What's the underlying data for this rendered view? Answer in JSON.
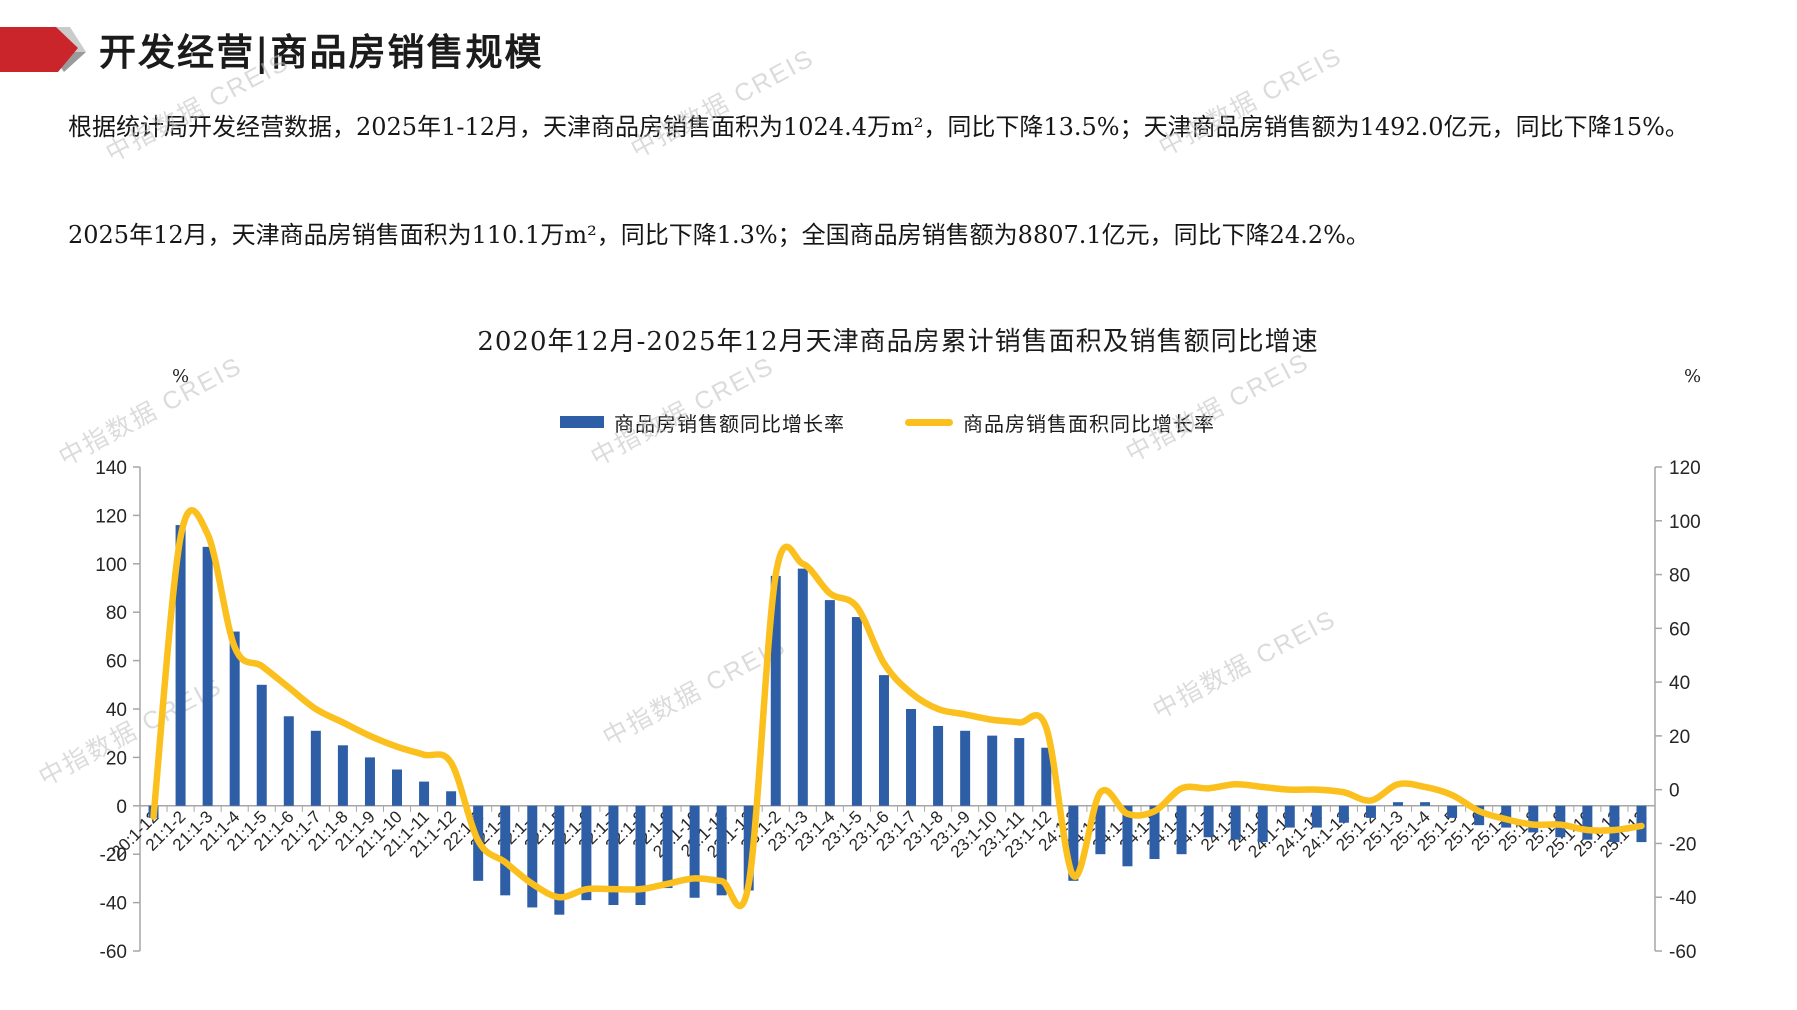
{
  "header": {
    "title": "开发经营|商品房销售规模"
  },
  "paragraphs": {
    "p1": "根据统计局开发经营数据，2025年1-12月，天津商品房销售面积为1024.4万m²，同比下降13.5%；天津商品房销售额为1492.0亿元，同比下降15%。",
    "p2": "2025年12月，天津商品房销售面积为110.1万m²，同比下降1.3%；全国商品房销售额为8807.1亿元，同比下降24.2%。"
  },
  "watermark": {
    "text": "中指数据 CREIS"
  },
  "chart_data": {
    "type": "combo-bar-line",
    "title": "2020年12月-2025年12月天津商品房累计销售面积及销售额同比增速",
    "unit_left": "%",
    "unit_right": "%",
    "legend_position": "top",
    "grid": "off",
    "left_axis": {
      "min": -60,
      "max": 140,
      "step": 20
    },
    "right_axis": {
      "min": -60,
      "max": 120,
      "step": 20
    },
    "categories": [
      "20:1-12",
      "21:1-2",
      "21:1-3",
      "21:1-4",
      "21:1-5",
      "21:1-6",
      "21:1-7",
      "21:1-8",
      "21:1-9",
      "21:1-10",
      "21:1-11",
      "21:1-12",
      "22:1-2",
      "22:1-3",
      "22:1-4",
      "22:1-5",
      "22:1-6",
      "22:1-7",
      "22:1-8",
      "22:1-9",
      "22:1-10",
      "22:1-11",
      "22:1-12",
      "23:1-2",
      "23:1-3",
      "23:1-4",
      "23:1-5",
      "23:1-6",
      "23:1-7",
      "23:1-8",
      "23:1-9",
      "23:1-10",
      "23:1-11",
      "23:1-12",
      "24:1-2",
      "24:1-3",
      "24:1-4",
      "24:1-5",
      "24:1-6",
      "24:1-7",
      "24:1-8",
      "24:1-9",
      "24:1-10",
      "24:1-11",
      "24:1-12",
      "25:1-2",
      "25:1-3",
      "25:1-4",
      "25:1-5",
      "25:1-6",
      "25:1-7",
      "25:1-8",
      "25:1-9",
      "25:1-10",
      "25:1-11",
      "25:1-12"
    ],
    "series": [
      {
        "name": "商品房销售额同比增长率",
        "type": "bar",
        "axis": "left",
        "color": "#2E5EA6",
        "values": [
          -5,
          116,
          107,
          72,
          50,
          37,
          31,
          25,
          20,
          15,
          10,
          6,
          -31,
          -37,
          -42,
          -45,
          -39,
          -41,
          -41,
          -34,
          -38,
          -37,
          -35,
          95,
          98,
          85,
          78,
          54,
          40,
          33,
          31,
          29,
          28,
          24,
          -31,
          -20,
          -25,
          -22,
          -20,
          -13,
          -14,
          -15,
          -9,
          -9,
          -7,
          -5,
          1.5,
          1.5,
          -5,
          -8,
          -9,
          -11,
          -13,
          -14,
          -15,
          -15
        ]
      },
      {
        "name": "商品房销售面积同比增长率",
        "type": "line",
        "axis": "right",
        "color": "#FBC01D",
        "values": [
          -10,
          94,
          95,
          53,
          46,
          38,
          30,
          25,
          20,
          16,
          13,
          10,
          -19,
          -27,
          -35,
          -40,
          -37,
          -37,
          -37,
          -35,
          -33,
          -34,
          -35,
          80,
          84,
          73,
          68,
          47,
          36,
          30,
          28,
          26,
          25,
          23,
          -32,
          -1,
          -9,
          -8,
          0.5,
          0.5,
          2,
          1,
          0,
          0,
          -1,
          -4,
          2,
          1,
          -2,
          -8,
          -11,
          -13,
          -13,
          -15,
          -15,
          -13.5
        ]
      }
    ]
  },
  "logo": {
    "color_red": "#C9252B",
    "color_light_gray": "#CBCBCB",
    "color_dark_gray": "#9B9B9B"
  }
}
